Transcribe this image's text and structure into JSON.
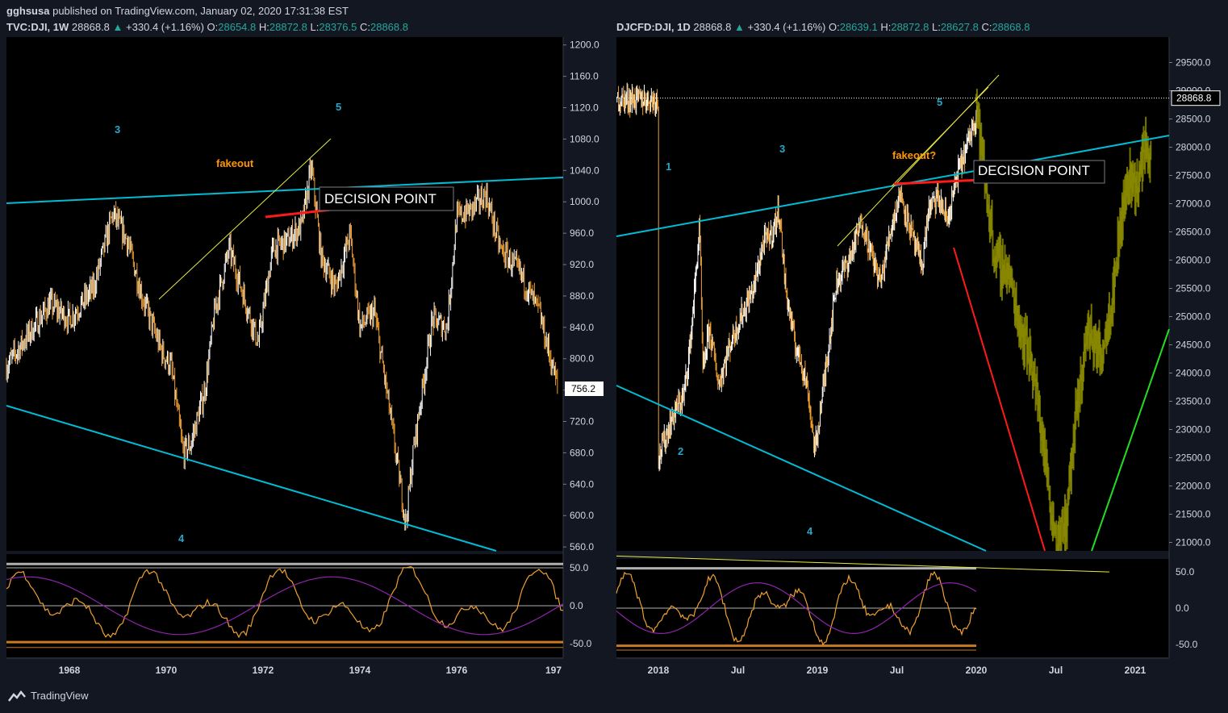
{
  "header": {
    "author": "gghsusa",
    "published": "published on TradingView.com, January 02, 2020 17:31:38 EST"
  },
  "branding": {
    "label": "TradingView",
    "icon": "tradingview-logo-icon"
  },
  "colors": {
    "background": "#000000",
    "panel_border": "#363a45",
    "teal_line": "#00bcd4",
    "red_line": "#ff1a1a",
    "yellow_line": "#e8e840",
    "wave_label": "#26a6c9",
    "fakeout": "#ff9800",
    "candle_up": "#ffffff",
    "candle_down": "#f0a030",
    "projection": "#8a8a00",
    "green_line": "#22dd22"
  },
  "chart_data": [
    {
      "type": "candlestick",
      "symbol": "TVC:DJI, 1W",
      "last": "28868.8",
      "change": "+330.4 (+1.16%)",
      "ohlc": {
        "O": "28654.8",
        "H": "28872.8",
        "L": "28376.5",
        "C": "28868.8"
      },
      "x_ticks": [
        "1968",
        "1970",
        "1972",
        "1974",
        "1976",
        "197"
      ],
      "y_ticks": [
        "1200.0",
        "1160.0",
        "1120.0",
        "1080.0",
        "1040.0",
        "1000.0",
        "960.0",
        "920.0",
        "880.0",
        "840.0",
        "800.0",
        "760.0",
        "720.0",
        "680.0",
        "640.0",
        "600.0",
        "560.0"
      ],
      "ylim": [
        555,
        1210
      ],
      "xlim": [
        1966.7,
        1978.2
      ],
      "last_price_label": "756.2",
      "path": [
        [
          1966.7,
          790
        ],
        [
          1967.2,
          835
        ],
        [
          1967.6,
          870
        ],
        [
          1968.0,
          850
        ],
        [
          1968.5,
          890
        ],
        [
          1968.9,
          985
        ],
        [
          1969.2,
          950
        ],
        [
          1969.5,
          880
        ],
        [
          1969.9,
          810
        ],
        [
          1970.1,
          790
        ],
        [
          1970.35,
          680
        ],
        [
          1970.5,
          690
        ],
        [
          1970.8,
          760
        ],
        [
          1971.0,
          860
        ],
        [
          1971.3,
          940
        ],
        [
          1971.6,
          880
        ],
        [
          1971.9,
          820
        ],
        [
          1972.2,
          940
        ],
        [
          1972.5,
          950
        ],
        [
          1972.8,
          970
        ],
        [
          1973.0,
          1045
        ],
        [
          1973.2,
          930
        ],
        [
          1973.5,
          890
        ],
        [
          1973.8,
          960
        ],
        [
          1974.0,
          840
        ],
        [
          1974.3,
          860
        ],
        [
          1974.6,
          740
        ],
        [
          1974.95,
          590
        ],
        [
          1975.1,
          680
        ],
        [
          1975.5,
          850
        ],
        [
          1975.8,
          840
        ],
        [
          1976.0,
          980
        ],
        [
          1976.3,
          990
        ],
        [
          1976.6,
          1010
        ],
        [
          1976.9,
          940
        ],
        [
          1977.3,
          910
        ],
        [
          1977.7,
          860
        ],
        [
          1978.1,
          760
        ]
      ],
      "annotations": {
        "wave_3": "3",
        "wave_5": "5",
        "wave_4": "4",
        "fakeout": "fakeout",
        "decision": "DECISION POINT"
      },
      "indicator": {
        "y_ticks": [
          "50.0",
          "0.0",
          "-50.0"
        ],
        "ylim": [
          -68,
          68
        ],
        "bands": [
          55,
          50,
          -55,
          -48
        ]
      }
    },
    {
      "type": "candlestick",
      "symbol": "DJCFD:DJI, 1D",
      "last": "28868.8",
      "change": "+330.4 (+1.16%)",
      "ohlc": {
        "O": "28639.1",
        "H": "28872.8",
        "L": "28627.8",
        "C": "28868.8"
      },
      "x_ticks": [
        "2018",
        "Jul",
        "2019",
        "Jul",
        "2020",
        "Jul",
        "2021"
      ],
      "y_ticks": [
        "29500.0",
        "29000.0",
        "28500.0",
        "28000.0",
        "27500.0",
        "27000.0",
        "26500.0",
        "26000.0",
        "25500.0",
        "25000.0",
        "24500.0",
        "24000.0",
        "23500.0",
        "23000.0",
        "22500.0",
        "22000.0",
        "21500.0",
        "21000.0"
      ],
      "ylim": [
        20850,
        29950
      ],
      "last_price_label": "28868.8",
      "path": [
        [
          0,
          22500
        ],
        [
          0.1,
          23300
        ],
        [
          0.16,
          23600
        ],
        [
          0.2,
          24500
        ],
        [
          0.26,
          26600
        ],
        [
          0.28,
          24000
        ],
        [
          0.32,
          24800
        ],
        [
          0.38,
          23800
        ],
        [
          0.45,
          24500
        ],
        [
          0.52,
          25000
        ],
        [
          0.6,
          25500
        ],
        [
          0.66,
          26300
        ],
        [
          0.72,
          26500
        ],
        [
          0.76,
          26900
        ],
        [
          0.8,
          25500
        ],
        [
          0.86,
          24500
        ],
        [
          0.9,
          24200
        ],
        [
          0.94,
          23700
        ],
        [
          0.985,
          22600
        ],
        [
          1.04,
          23800
        ],
        [
          1.12,
          25600
        ],
        [
          1.2,
          26000
        ],
        [
          1.28,
          26700
        ],
        [
          1.34,
          26100
        ],
        [
          1.4,
          25600
        ],
        [
          1.45,
          26400
        ],
        [
          1.52,
          27200
        ],
        [
          1.58,
          26600
        ],
        [
          1.62,
          26200
        ],
        [
          1.66,
          25900
        ],
        [
          1.7,
          26900
        ],
        [
          1.76,
          27100
        ],
        [
          1.82,
          26700
        ],
        [
          1.88,
          27500
        ],
        [
          1.94,
          28000
        ],
        [
          2.0,
          28600
        ],
        [
          2.01,
          28850
        ]
      ],
      "projection": [
        [
          2.0,
          28800
        ],
        [
          2.05,
          27500
        ],
        [
          2.12,
          26000
        ],
        [
          2.2,
          25800
        ],
        [
          2.28,
          24800
        ],
        [
          2.35,
          24200
        ],
        [
          2.42,
          22800
        ],
        [
          2.48,
          21400
        ],
        [
          2.52,
          21000
        ],
        [
          2.56,
          21300
        ],
        [
          2.62,
          23000
        ],
        [
          2.7,
          24800
        ],
        [
          2.78,
          24300
        ],
        [
          2.86,
          25400
        ],
        [
          2.9,
          26500
        ],
        [
          2.96,
          27500
        ],
        [
          3.02,
          27300
        ],
        [
          3.06,
          28100
        ],
        [
          3.1,
          27800
        ]
      ],
      "annotations": {
        "wave_1": "1",
        "wave_2": "2",
        "wave_3": "3",
        "wave_4": "4",
        "wave_5": "5",
        "fakeout": "fakeout?",
        "decision": "DECISION POINT"
      },
      "indicator": {
        "y_ticks": [
          "50.0",
          "0.0",
          "-50.0"
        ],
        "ylim": [
          -68,
          68
        ],
        "bands": [
          55,
          52,
          -55,
          -52
        ]
      }
    }
  ]
}
